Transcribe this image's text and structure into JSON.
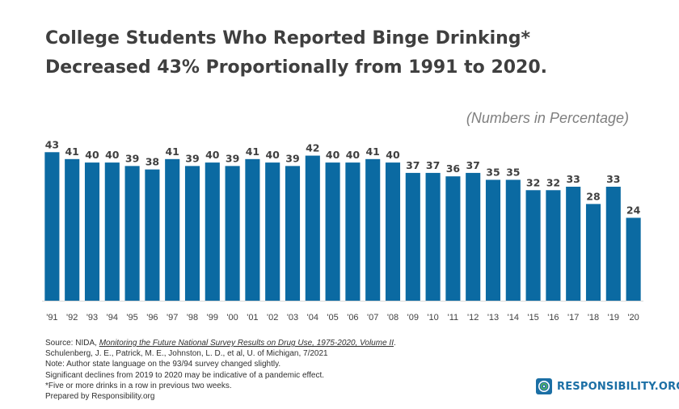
{
  "chart_data": {
    "type": "bar",
    "title_lines": [
      "College Students Who Reported Binge Drinking*",
      "Decreased 43% Proportionally from 1991 to 2020."
    ],
    "subtitle": "(Numbers in Percentage)",
    "categories": [
      "'91",
      "'92",
      "'93",
      "'94",
      "'95",
      "'96",
      "'97",
      "'98",
      "'99",
      "'00",
      "'01",
      "'02",
      "'03",
      "'04",
      "'05",
      "'06",
      "'07",
      "'08",
      "'09",
      "'10",
      "'11",
      "'12",
      "'13",
      "'14",
      "'15",
      "'16",
      "'17",
      "'18",
      "'19",
      "'20"
    ],
    "values": [
      43,
      41,
      40,
      40,
      39,
      38,
      41,
      39,
      40,
      39,
      41,
      40,
      39,
      42,
      40,
      40,
      41,
      40,
      37,
      37,
      36,
      37,
      35,
      35,
      32,
      32,
      33,
      28,
      33,
      24
    ],
    "ylim": [
      0,
      44
    ],
    "xlabel": "",
    "ylabel": "",
    "grid": false,
    "legend": "none",
    "bar_color": "#0b6aa2"
  },
  "notes": {
    "source_prefix": "Source: NIDA, ",
    "source_title": "Monitoring the Future National Survey Results on Drug Use, 1975-2020, Volume II",
    "source_suffix": ".",
    "authors": "Schulenberg, J. E., Patrick, M. E., Johnston, L. D., et al, U. of Michigan, 7/2021",
    "note_language": "Note: Author state language on the 93/94 survey changed slightly.",
    "note_declines": "Significant declines from 2019 to 2020 may be indicative of a pandemic effect.",
    "note_definition": "*Five or more drinks in a row in previous two weeks.",
    "prepared_by": "Prepared by Responsibility.org"
  },
  "logo": {
    "text": "RESPONSIBILITY.ORG",
    "icon": "responsibility-logo-icon",
    "color": "#1b6fa5",
    "accent": "#5cb85c"
  }
}
